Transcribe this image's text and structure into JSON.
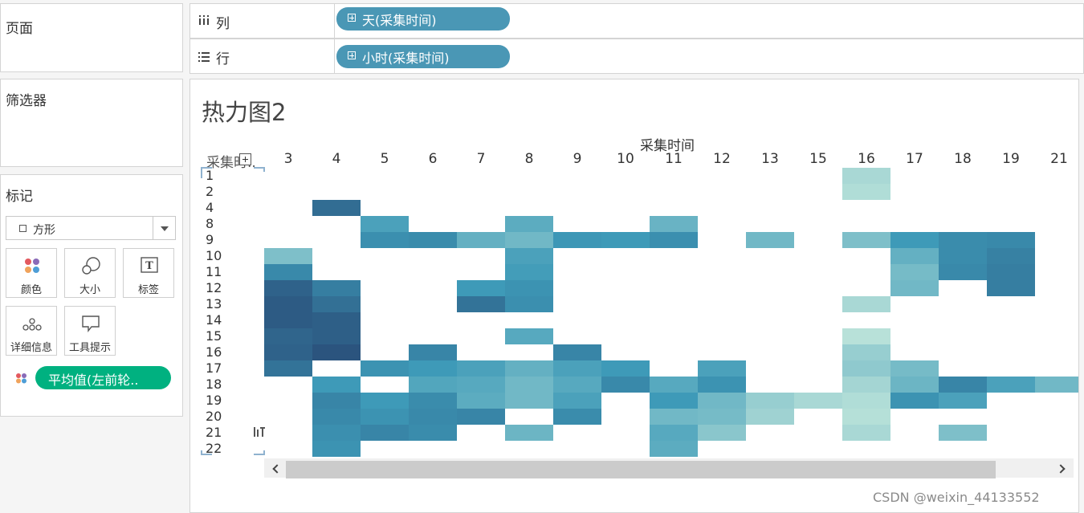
{
  "left": {
    "pages_title": "页面",
    "filters_title": "筛选器",
    "marks_title": "标记",
    "mark_type": "方形",
    "mark_buttons": [
      "颜色",
      "大小",
      "标签",
      "详细信息",
      "工具提示"
    ],
    "color_field": "平均值(左前轮.."
  },
  "shelves": {
    "columns_label": "列",
    "columns_pill": "天(采集时间)",
    "rows_label": "行",
    "rows_pill": "小时(采集时间)"
  },
  "viz": {
    "title": "热力图2",
    "column_header": "采集时间",
    "row_field": "采集时.."
  },
  "watermark": "CSDN @weixin_44133552",
  "chart_data": {
    "type": "heatmap",
    "title": "热力图2",
    "x_field": "天(采集时间)",
    "y_field": "小时(采集时间)",
    "x_title": "采集时间",
    "x": [
      "3",
      "4",
      "5",
      "6",
      "7",
      "8",
      "9",
      "10",
      "11",
      "12",
      "13",
      "15",
      "16",
      "17",
      "18",
      "19",
      "21"
    ],
    "y": [
      "1",
      "2",
      "4",
      "8",
      "9",
      "10",
      "11",
      "12",
      "13",
      "14",
      "15",
      "16",
      "17",
      "18",
      "19",
      "20",
      "21",
      "22"
    ],
    "color_measure": "平均值(左前轮..",
    "color_scale": [
      "#bde4da",
      "#2b547e"
    ],
    "values": [
      [
        null,
        null,
        null,
        null,
        null,
        null,
        null,
        null,
        null,
        null,
        null,
        null,
        0.08,
        null,
        null,
        null,
        null
      ],
      [
        null,
        null,
        null,
        null,
        null,
        null,
        null,
        null,
        null,
        null,
        null,
        null,
        0.05,
        null,
        null,
        null,
        null
      ],
      [
        null,
        0.82,
        null,
        null,
        null,
        null,
        null,
        null,
        null,
        null,
        null,
        null,
        null,
        null,
        null,
        null,
        null
      ],
      [
        null,
        null,
        0.45,
        null,
        null,
        0.38,
        null,
        null,
        0.33,
        null,
        null,
        null,
        null,
        null,
        null,
        null,
        null
      ],
      [
        null,
        null,
        0.58,
        0.6,
        0.35,
        0.3,
        0.52,
        0.5,
        0.58,
        null,
        0.3,
        null,
        0.25,
        0.5,
        0.6,
        0.62,
        null
      ],
      [
        0.25,
        null,
        null,
        null,
        null,
        0.45,
        null,
        null,
        null,
        null,
        null,
        null,
        null,
        0.35,
        0.6,
        0.68,
        null
      ],
      [
        0.62,
        null,
        null,
        null,
        null,
        0.48,
        null,
        null,
        null,
        null,
        null,
        null,
        null,
        0.28,
        0.62,
        0.7,
        null
      ],
      [
        0.9,
        0.7,
        null,
        null,
        0.5,
        0.55,
        null,
        null,
        null,
        null,
        null,
        null,
        null,
        0.3,
        null,
        0.7,
        null
      ],
      [
        0.95,
        0.8,
        null,
        null,
        0.78,
        0.58,
        null,
        null,
        null,
        null,
        null,
        null,
        0.08,
        null,
        null,
        null,
        null
      ],
      [
        0.95,
        0.92,
        null,
        null,
        null,
        null,
        null,
        null,
        null,
        null,
        null,
        null,
        null,
        null,
        null,
        null,
        null
      ],
      [
        0.88,
        0.92,
        null,
        null,
        null,
        0.4,
        null,
        null,
        null,
        null,
        null,
        null,
        0.02,
        null,
        null,
        null,
        null
      ],
      [
        0.9,
        1.0,
        null,
        0.65,
        null,
        null,
        0.65,
        null,
        null,
        null,
        null,
        null,
        0.15,
        null,
        null,
        null,
        null
      ],
      [
        0.78,
        null,
        0.55,
        0.5,
        0.45,
        0.35,
        0.45,
        0.5,
        null,
        0.45,
        null,
        null,
        0.18,
        0.28,
        null,
        null,
        null
      ],
      [
        null,
        0.5,
        null,
        0.42,
        0.4,
        0.3,
        0.4,
        0.62,
        0.4,
        0.55,
        null,
        null,
        0.1,
        0.32,
        0.65,
        0.45,
        0.3
      ],
      [
        null,
        0.65,
        0.5,
        0.6,
        0.38,
        0.3,
        0.45,
        null,
        0.5,
        0.3,
        0.15,
        0.08,
        0.05,
        0.55,
        0.45,
        null,
        null
      ],
      [
        null,
        0.62,
        0.55,
        0.62,
        0.65,
        null,
        0.6,
        null,
        0.3,
        0.28,
        0.12,
        null,
        0.03,
        null,
        null,
        null,
        null
      ],
      [
        null,
        0.58,
        0.65,
        0.6,
        null,
        0.32,
        null,
        null,
        0.4,
        0.2,
        null,
        null,
        0.08,
        null,
        0.25,
        null,
        null
      ],
      [
        null,
        0.55,
        null,
        null,
        null,
        null,
        null,
        null,
        0.38,
        null,
        null,
        null,
        null,
        null,
        null,
        null,
        null
      ]
    ]
  }
}
